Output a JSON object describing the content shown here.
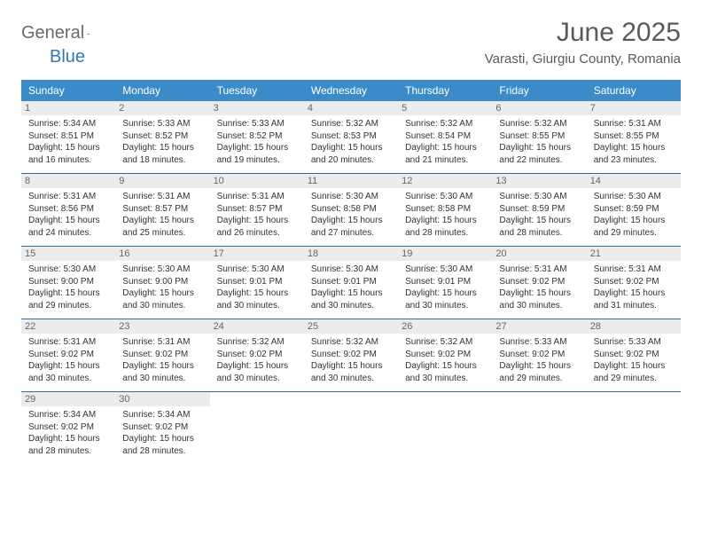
{
  "brand": {
    "part1": "General",
    "part2": "Blue"
  },
  "title": "June 2025",
  "location": "Varasti, Giurgiu County, Romania",
  "colors": {
    "header_bg": "#3b8bc8",
    "header_text": "#ffffff",
    "daynum_bg": "#ececec",
    "row_border": "#2f6fa8",
    "brand_gray": "#6a6a6a",
    "brand_blue": "#2f78ba"
  },
  "weekdays": [
    "Sunday",
    "Monday",
    "Tuesday",
    "Wednesday",
    "Thursday",
    "Friday",
    "Saturday"
  ],
  "weeks": [
    [
      {
        "n": "1",
        "sr": "Sunrise: 5:34 AM",
        "ss": "Sunset: 8:51 PM",
        "d1": "Daylight: 15 hours",
        "d2": "and 16 minutes."
      },
      {
        "n": "2",
        "sr": "Sunrise: 5:33 AM",
        "ss": "Sunset: 8:52 PM",
        "d1": "Daylight: 15 hours",
        "d2": "and 18 minutes."
      },
      {
        "n": "3",
        "sr": "Sunrise: 5:33 AM",
        "ss": "Sunset: 8:52 PM",
        "d1": "Daylight: 15 hours",
        "d2": "and 19 minutes."
      },
      {
        "n": "4",
        "sr": "Sunrise: 5:32 AM",
        "ss": "Sunset: 8:53 PM",
        "d1": "Daylight: 15 hours",
        "d2": "and 20 minutes."
      },
      {
        "n": "5",
        "sr": "Sunrise: 5:32 AM",
        "ss": "Sunset: 8:54 PM",
        "d1": "Daylight: 15 hours",
        "d2": "and 21 minutes."
      },
      {
        "n": "6",
        "sr": "Sunrise: 5:32 AM",
        "ss": "Sunset: 8:55 PM",
        "d1": "Daylight: 15 hours",
        "d2": "and 22 minutes."
      },
      {
        "n": "7",
        "sr": "Sunrise: 5:31 AM",
        "ss": "Sunset: 8:55 PM",
        "d1": "Daylight: 15 hours",
        "d2": "and 23 minutes."
      }
    ],
    [
      {
        "n": "8",
        "sr": "Sunrise: 5:31 AM",
        "ss": "Sunset: 8:56 PM",
        "d1": "Daylight: 15 hours",
        "d2": "and 24 minutes."
      },
      {
        "n": "9",
        "sr": "Sunrise: 5:31 AM",
        "ss": "Sunset: 8:57 PM",
        "d1": "Daylight: 15 hours",
        "d2": "and 25 minutes."
      },
      {
        "n": "10",
        "sr": "Sunrise: 5:31 AM",
        "ss": "Sunset: 8:57 PM",
        "d1": "Daylight: 15 hours",
        "d2": "and 26 minutes."
      },
      {
        "n": "11",
        "sr": "Sunrise: 5:30 AM",
        "ss": "Sunset: 8:58 PM",
        "d1": "Daylight: 15 hours",
        "d2": "and 27 minutes."
      },
      {
        "n": "12",
        "sr": "Sunrise: 5:30 AM",
        "ss": "Sunset: 8:58 PM",
        "d1": "Daylight: 15 hours",
        "d2": "and 28 minutes."
      },
      {
        "n": "13",
        "sr": "Sunrise: 5:30 AM",
        "ss": "Sunset: 8:59 PM",
        "d1": "Daylight: 15 hours",
        "d2": "and 28 minutes."
      },
      {
        "n": "14",
        "sr": "Sunrise: 5:30 AM",
        "ss": "Sunset: 8:59 PM",
        "d1": "Daylight: 15 hours",
        "d2": "and 29 minutes."
      }
    ],
    [
      {
        "n": "15",
        "sr": "Sunrise: 5:30 AM",
        "ss": "Sunset: 9:00 PM",
        "d1": "Daylight: 15 hours",
        "d2": "and 29 minutes."
      },
      {
        "n": "16",
        "sr": "Sunrise: 5:30 AM",
        "ss": "Sunset: 9:00 PM",
        "d1": "Daylight: 15 hours",
        "d2": "and 30 minutes."
      },
      {
        "n": "17",
        "sr": "Sunrise: 5:30 AM",
        "ss": "Sunset: 9:01 PM",
        "d1": "Daylight: 15 hours",
        "d2": "and 30 minutes."
      },
      {
        "n": "18",
        "sr": "Sunrise: 5:30 AM",
        "ss": "Sunset: 9:01 PM",
        "d1": "Daylight: 15 hours",
        "d2": "and 30 minutes."
      },
      {
        "n": "19",
        "sr": "Sunrise: 5:30 AM",
        "ss": "Sunset: 9:01 PM",
        "d1": "Daylight: 15 hours",
        "d2": "and 30 minutes."
      },
      {
        "n": "20",
        "sr": "Sunrise: 5:31 AM",
        "ss": "Sunset: 9:02 PM",
        "d1": "Daylight: 15 hours",
        "d2": "and 30 minutes."
      },
      {
        "n": "21",
        "sr": "Sunrise: 5:31 AM",
        "ss": "Sunset: 9:02 PM",
        "d1": "Daylight: 15 hours",
        "d2": "and 31 minutes."
      }
    ],
    [
      {
        "n": "22",
        "sr": "Sunrise: 5:31 AM",
        "ss": "Sunset: 9:02 PM",
        "d1": "Daylight: 15 hours",
        "d2": "and 30 minutes."
      },
      {
        "n": "23",
        "sr": "Sunrise: 5:31 AM",
        "ss": "Sunset: 9:02 PM",
        "d1": "Daylight: 15 hours",
        "d2": "and 30 minutes."
      },
      {
        "n": "24",
        "sr": "Sunrise: 5:32 AM",
        "ss": "Sunset: 9:02 PM",
        "d1": "Daylight: 15 hours",
        "d2": "and 30 minutes."
      },
      {
        "n": "25",
        "sr": "Sunrise: 5:32 AM",
        "ss": "Sunset: 9:02 PM",
        "d1": "Daylight: 15 hours",
        "d2": "and 30 minutes."
      },
      {
        "n": "26",
        "sr": "Sunrise: 5:32 AM",
        "ss": "Sunset: 9:02 PM",
        "d1": "Daylight: 15 hours",
        "d2": "and 30 minutes."
      },
      {
        "n": "27",
        "sr": "Sunrise: 5:33 AM",
        "ss": "Sunset: 9:02 PM",
        "d1": "Daylight: 15 hours",
        "d2": "and 29 minutes."
      },
      {
        "n": "28",
        "sr": "Sunrise: 5:33 AM",
        "ss": "Sunset: 9:02 PM",
        "d1": "Daylight: 15 hours",
        "d2": "and 29 minutes."
      }
    ],
    [
      {
        "n": "29",
        "sr": "Sunrise: 5:34 AM",
        "ss": "Sunset: 9:02 PM",
        "d1": "Daylight: 15 hours",
        "d2": "and 28 minutes."
      },
      {
        "n": "30",
        "sr": "Sunrise: 5:34 AM",
        "ss": "Sunset: 9:02 PM",
        "d1": "Daylight: 15 hours",
        "d2": "and 28 minutes."
      },
      null,
      null,
      null,
      null,
      null
    ]
  ]
}
